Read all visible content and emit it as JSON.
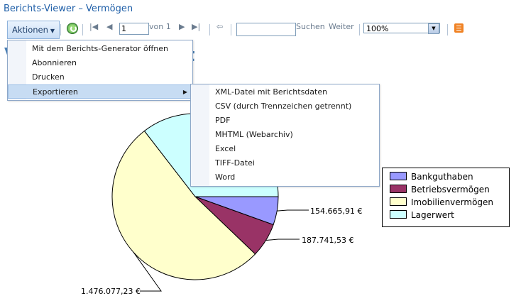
{
  "window_title": "Berichts-Viewer – Vermögen",
  "toolbar": {
    "actions_label": "Aktionen",
    "page_current": "1",
    "page_of_label": "von 1",
    "search_placeholder": "",
    "search_next_label": "Suchen",
    "search_weiter_label": "Weiter",
    "zoom": "100%"
  },
  "report_title_visible": [
    "V",
    "t"
  ],
  "menu_actions": {
    "items": [
      {
        "label": "Mit dem Berichts-Generator öffnen"
      },
      {
        "label": "Abonnieren"
      },
      {
        "label": "Drucken"
      },
      {
        "label": "Exportieren",
        "has_submenu": true,
        "active": true
      }
    ]
  },
  "menu_export": {
    "items": [
      {
        "label": "XML-Datei mit Berichtsdaten"
      },
      {
        "label": "CSV (durch Trennzeichen getrennt)"
      },
      {
        "label": "PDF"
      },
      {
        "label": "MHTML (Webarchiv)"
      },
      {
        "label": "Excel"
      },
      {
        "label": "TIFF-Datei"
      },
      {
        "label": "Word"
      }
    ]
  },
  "chart_data": {
    "type": "pie",
    "categories": [
      "Bankguthaben",
      "Betriebsvermögen",
      "Imobilienvermögen",
      "Lagerwert"
    ],
    "values": [
      154665.91,
      187741.53,
      1476077.23,
      1000000
    ],
    "data_labels": [
      "154.665,91 €",
      "187.741,53 €",
      "1.476.077,23 €",
      ""
    ],
    "colors": [
      "#9999ff",
      "#993366",
      "#ffffcc",
      "#ccffff"
    ],
    "legend_position": "right"
  }
}
